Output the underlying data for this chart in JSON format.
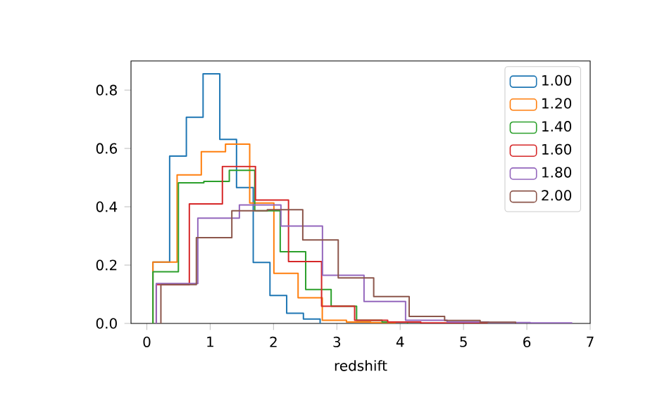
{
  "chart_data": {
    "type": "step",
    "xlabel": "redshift",
    "xlim": [
      -0.25,
      7
    ],
    "ylim": [
      0,
      0.9
    ],
    "xticks": [
      0,
      1,
      2,
      3,
      4,
      5,
      6,
      7
    ],
    "yticks": [
      {
        "value": 0,
        "label": "0.0"
      },
      0.2,
      0.4,
      0.6,
      0.8
    ],
    "legend": "top right",
    "series": [
      {
        "name": "1.00",
        "color": "#1f77b4",
        "x": [
          0.096,
          0.096,
          0.36,
          0.624,
          0.888,
          1.152,
          1.416,
          1.68,
          1.944,
          2.208,
          2.472,
          2.736
        ],
        "values": [
          0,
          0.21,
          0.574,
          0.707,
          0.856,
          0.631,
          0.466,
          0.209,
          0.096,
          0.035,
          0.015,
          0
        ]
      },
      {
        "name": "1.20",
        "color": "#ff7f0e",
        "x": [
          0.096,
          0.096,
          0.478,
          0.86,
          1.242,
          1.624,
          2.006,
          2.388,
          2.77,
          3.152,
          3.534,
          3.916
        ],
        "values": [
          0,
          0.21,
          0.509,
          0.589,
          0.615,
          0.413,
          0.172,
          0.088,
          0.011,
          0.005,
          0.003,
          0
        ]
      },
      {
        "name": "1.40",
        "color": "#2ca02c",
        "x": [
          0.096,
          0.096,
          0.498,
          0.9,
          1.302,
          1.704,
          2.106,
          2.508,
          2.91,
          3.312,
          3.714,
          4.116
        ],
        "values": [
          0,
          0.177,
          0.482,
          0.487,
          0.525,
          0.386,
          0.246,
          0.116,
          0.059,
          0.011,
          0.005,
          0
        ]
      },
      {
        "name": "1.60",
        "color": "#d62728",
        "x": [
          0.149,
          0.149,
          0.671,
          1.193,
          1.715,
          2.237,
          2.759,
          3.281,
          3.803,
          4.325,
          4.847,
          5.369
        ],
        "values": [
          0,
          0.133,
          0.41,
          0.538,
          0.423,
          0.212,
          0.059,
          0.011,
          0.005,
          0.002,
          0.002,
          0
        ]
      },
      {
        "name": "1.80",
        "color": "#9467bd",
        "x": [
          0.149,
          0.149,
          0.805,
          1.461,
          2.117,
          2.773,
          3.429,
          4.085,
          4.741,
          5.397,
          6.053,
          6.709
        ],
        "values": [
          0,
          0.137,
          0.361,
          0.406,
          0.334,
          0.165,
          0.075,
          0.011,
          0.005,
          0.003,
          0.002,
          0
        ]
      },
      {
        "name": "2.00",
        "color": "#8c564b",
        "x": [
          0.222,
          0.222,
          0.782,
          1.342,
          1.902,
          2.462,
          3.022,
          3.582,
          4.142,
          4.702,
          5.262,
          5.822
        ],
        "values": [
          0,
          0.133,
          0.294,
          0.386,
          0.39,
          0.286,
          0.156,
          0.092,
          0.024,
          0.01,
          0.004,
          0
        ]
      }
    ]
  }
}
